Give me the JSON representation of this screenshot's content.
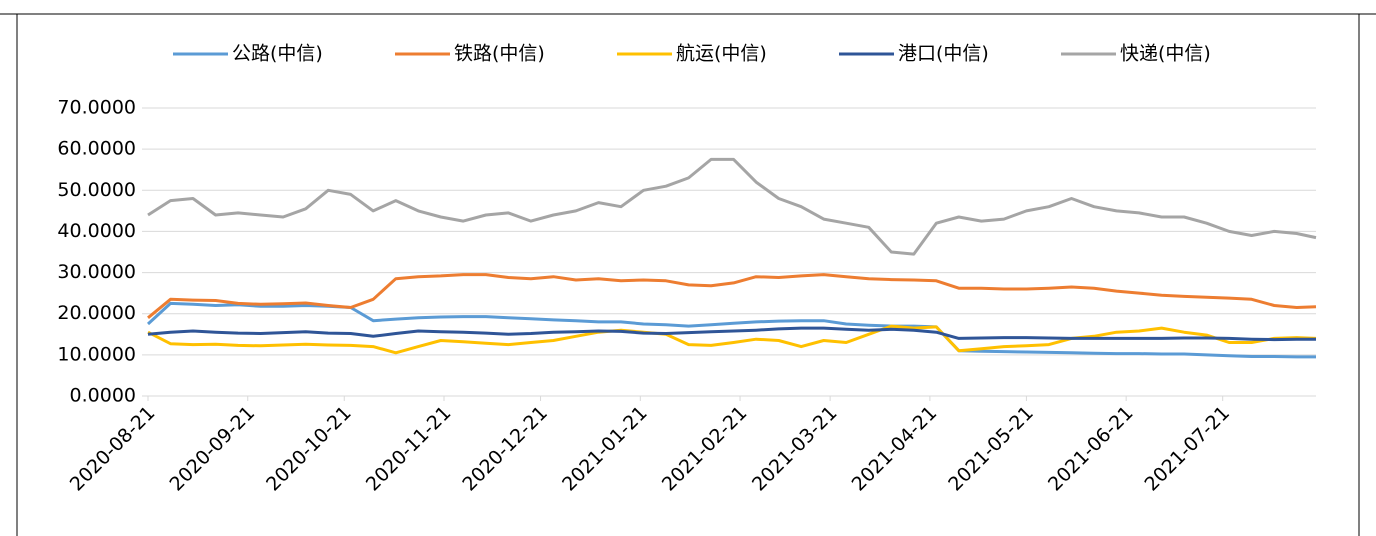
{
  "chart_data": {
    "type": "line",
    "x": [
      "2020-08-21",
      "2020-08-28",
      "2020-09-04",
      "2020-09-11",
      "2020-09-18",
      "2020-09-25",
      "2020-10-02",
      "2020-10-09",
      "2020-10-16",
      "2020-10-23",
      "2020-10-30",
      "2020-11-06",
      "2020-11-13",
      "2020-11-20",
      "2020-11-27",
      "2020-12-04",
      "2020-12-11",
      "2020-12-18",
      "2020-12-25",
      "2021-01-01",
      "2021-01-08",
      "2021-01-15",
      "2021-01-22",
      "2021-01-29",
      "2021-02-05",
      "2021-02-12",
      "2021-02-19",
      "2021-02-26",
      "2021-03-05",
      "2021-03-12",
      "2021-03-19",
      "2021-03-26",
      "2021-04-02",
      "2021-04-09",
      "2021-04-16",
      "2021-04-23",
      "2021-04-30",
      "2021-05-07",
      "2021-05-14",
      "2021-05-21",
      "2021-05-28",
      "2021-06-04",
      "2021-06-11",
      "2021-06-18",
      "2021-06-25",
      "2021-07-02",
      "2021-07-09",
      "2021-07-16",
      "2021-07-23",
      "2021-07-30",
      "2021-08-06",
      "2021-08-13",
      "2021-08-19"
    ],
    "xlim": [
      "2020-08-21",
      "2021-08-19"
    ],
    "xticks": [
      "2020-08-21",
      "2020-09-21",
      "2020-10-21",
      "2020-11-21",
      "2020-12-21",
      "2021-01-21",
      "2021-02-21",
      "2021-03-21",
      "2021-04-21",
      "2021-05-21",
      "2021-06-21",
      "2021-07-21"
    ],
    "ylim": [
      0,
      70
    ],
    "yticks": [
      {
        "value": 0,
        "label": "0.0000"
      },
      {
        "value": 10,
        "label": "10.0000"
      },
      {
        "value": 20,
        "label": "20.0000"
      },
      {
        "value": 30,
        "label": "30.0000"
      },
      {
        "value": 40,
        "label": "40.0000"
      },
      {
        "value": 50,
        "label": "50.0000"
      },
      {
        "value": 60,
        "label": "60.0000"
      },
      {
        "value": 70,
        "label": "70.0000"
      }
    ],
    "grid": true,
    "legend": "top",
    "series": [
      {
        "name": "公路(中信)",
        "color": "#5b9bd5",
        "values": [
          17.5,
          22.5,
          22.3,
          22,
          22.2,
          21.8,
          21.8,
          22,
          21.8,
          21.5,
          18.3,
          18.7,
          19,
          19.2,
          19.3,
          19.3,
          19,
          18.8,
          18.5,
          18.3,
          18,
          18,
          17.5,
          17.3,
          17,
          17.3,
          17.7,
          18,
          18.2,
          18.3,
          18.3,
          17.5,
          17.2,
          17,
          17,
          16.8,
          11,
          10.9,
          10.8,
          10.7,
          10.6,
          10.5,
          10.4,
          10.3,
          10.3,
          10.2,
          10.2,
          10,
          9.8,
          9.6,
          9.6,
          9.5,
          9.5
        ]
      },
      {
        "name": "铁路(中信)",
        "color": "#ed7d31",
        "values": [
          19,
          23.5,
          23.3,
          23.2,
          22.5,
          22.3,
          22.4,
          22.6,
          22,
          21.5,
          23.5,
          28.5,
          29,
          29.2,
          29.5,
          29.5,
          28.8,
          28.5,
          29,
          28.2,
          28.5,
          28,
          28.2,
          28,
          27,
          26.8,
          27.5,
          29,
          28.8,
          29.2,
          29.5,
          29,
          28.5,
          28.3,
          28.2,
          28,
          26.2,
          26.2,
          26,
          26,
          26.2,
          26.5,
          26.2,
          25.5,
          25,
          24.5,
          24.2,
          24,
          23.8,
          23.5,
          22,
          21.5,
          21.7
        ]
      },
      {
        "name": "航运(中信)",
        "color": "#ffc000",
        "values": [
          15.5,
          12.7,
          12.5,
          12.6,
          12.3,
          12.2,
          12.4,
          12.6,
          12.4,
          12.3,
          12,
          10.5,
          12,
          13.5,
          13.2,
          12.8,
          12.5,
          13,
          13.5,
          14.5,
          15.5,
          16,
          15.5,
          15,
          12.5,
          12.3,
          13,
          13.8,
          13.5,
          12,
          13.5,
          13,
          15,
          17,
          16.5,
          16.8,
          11,
          11.5,
          12,
          12.2,
          12.5,
          14,
          14.5,
          15.5,
          15.8,
          16.5,
          15.5,
          14.8,
          13,
          13,
          14,
          14.2,
          14
        ]
      },
      {
        "name": "港口(中信)",
        "color": "#2f5597",
        "values": [
          15,
          15.5,
          15.8,
          15.5,
          15.3,
          15.2,
          15.4,
          15.6,
          15.3,
          15.2,
          14.5,
          15.2,
          15.8,
          15.6,
          15.5,
          15.3,
          15,
          15.2,
          15.5,
          15.6,
          15.8,
          15.7,
          15.3,
          15.2,
          15.4,
          15.6,
          15.8,
          16,
          16.3,
          16.5,
          16.5,
          16.2,
          16,
          16.2,
          16,
          15.5,
          14,
          14.1,
          14.2,
          14.2,
          14.1,
          14,
          14,
          14,
          14,
          14,
          14.1,
          14.1,
          14,
          13.8,
          13.7,
          13.8,
          13.8
        ]
      },
      {
        "name": "快递(中信)",
        "color": "#a5a5a5",
        "values": [
          44,
          47.5,
          48,
          44,
          44.5,
          44,
          43.5,
          45.5,
          50,
          49,
          45,
          47.5,
          45,
          43.5,
          42.5,
          44,
          44.5,
          42.5,
          44,
          45,
          47,
          46,
          50,
          51,
          53,
          57.5,
          57.5,
          52,
          48,
          46,
          43,
          42,
          41,
          35,
          34.5,
          42,
          43.5,
          42.5,
          43,
          45,
          46,
          48,
          46,
          45,
          44.5,
          43.5,
          43.5,
          42,
          40,
          39,
          40,
          39.5,
          38.5
        ]
      }
    ]
  }
}
